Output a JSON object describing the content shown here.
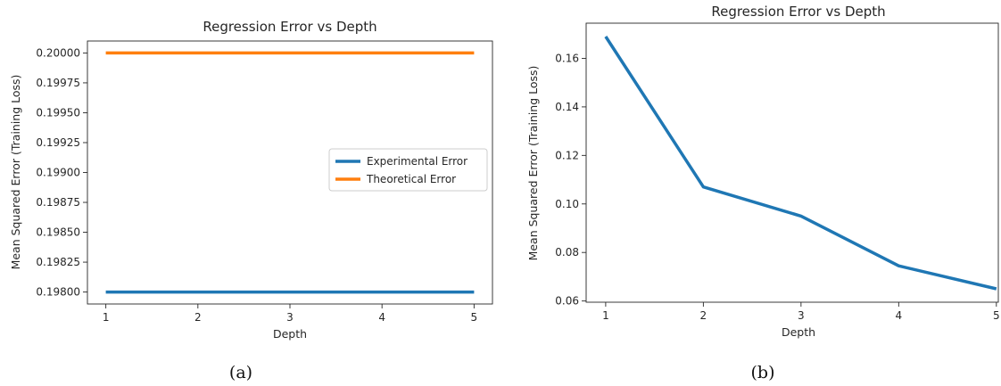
{
  "chart_data": [
    {
      "type": "line",
      "title": "Regression Error vs Depth",
      "xlabel": "Depth",
      "ylabel": "Mean Squared Error (Training Loss)",
      "caption": "(a)",
      "x": [
        1,
        2,
        3,
        4,
        5
      ],
      "xticks": [
        "1",
        "2",
        "3",
        "4",
        "5"
      ],
      "xlim": [
        0.8,
        5.2
      ],
      "ylim": [
        0.1979,
        0.2001
      ],
      "yticks": [
        "0.19800",
        "0.19825",
        "0.19850",
        "0.19875",
        "0.19900",
        "0.19925",
        "0.19950",
        "0.19975",
        "0.20000"
      ],
      "ytick_values": [
        0.198,
        0.19825,
        0.1985,
        0.19875,
        0.199,
        0.19925,
        0.1995,
        0.19975,
        0.2
      ],
      "legend_position": "center-right",
      "grid": false,
      "series": [
        {
          "name": "Experimental Error",
          "color": "#1f77b4",
          "values": [
            0.198,
            0.198,
            0.198,
            0.198,
            0.198
          ]
        },
        {
          "name": "Theoretical Error",
          "color": "#ff7f0e",
          "values": [
            0.2,
            0.2,
            0.2,
            0.2,
            0.2
          ]
        }
      ]
    },
    {
      "type": "line",
      "title": "Regression Error vs Depth",
      "xlabel": "Depth",
      "ylabel": "Mean Squared Error (Training Loss)",
      "caption": "(b)",
      "x": [
        1,
        2,
        3,
        4,
        5
      ],
      "xticks": [
        "1",
        "2",
        "3",
        "4",
        "5"
      ],
      "xlim": [
        0.8,
        5.02
      ],
      "ylim": [
        0.0595,
        0.1745
      ],
      "yticks": [
        "0.06",
        "0.08",
        "0.10",
        "0.12",
        "0.14",
        "0.16"
      ],
      "ytick_values": [
        0.06,
        0.08,
        0.1,
        0.12,
        0.14,
        0.16
      ],
      "grid": false,
      "series": [
        {
          "color": "#1f77b4",
          "values": [
            0.169,
            0.107,
            0.095,
            0.0745,
            0.065
          ]
        }
      ]
    }
  ]
}
